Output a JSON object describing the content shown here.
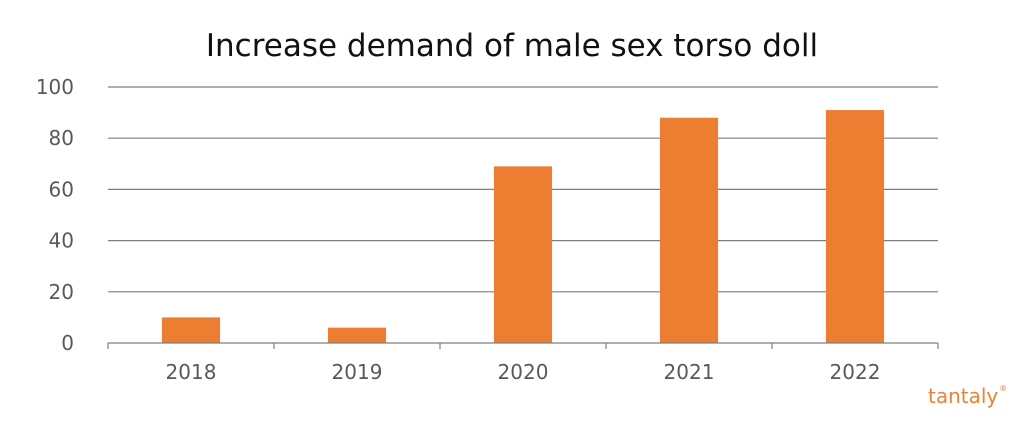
{
  "chart_data": {
    "type": "bar",
    "title": "Increase demand of male sex torso doll",
    "xlabel": "",
    "ylabel": "",
    "categories": [
      "2018",
      "2019",
      "2020",
      "2021",
      "2022"
    ],
    "values": [
      10,
      6,
      69,
      88,
      91
    ],
    "ylim": [
      0,
      100
    ],
    "yticks": [
      0,
      20,
      40,
      60,
      80,
      100
    ],
    "grid": true,
    "legend": "none",
    "bar_color": "#ed7d31",
    "grid_color": "#7f7f7f"
  },
  "watermark": {
    "text": "tantaly",
    "mark": "®"
  }
}
